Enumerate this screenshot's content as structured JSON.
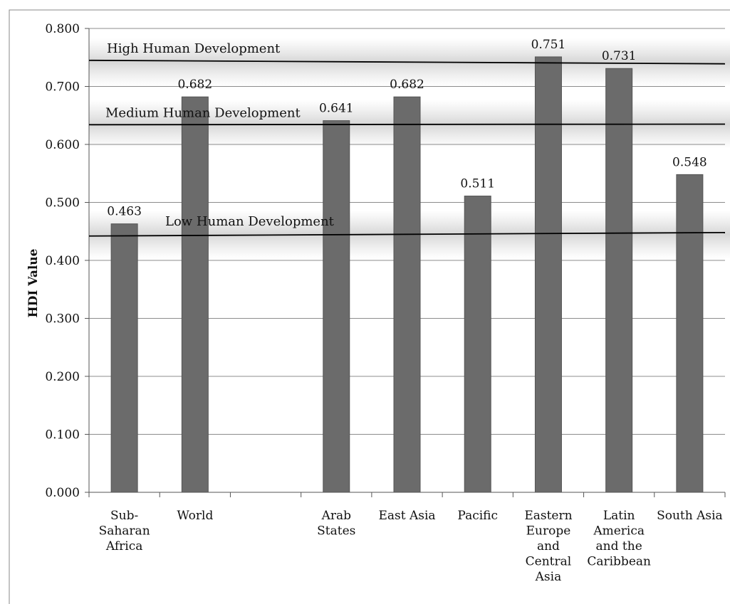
{
  "chart_data": {
    "type": "bar",
    "title": "",
    "xlabel": "",
    "ylabel": "HDI Value",
    "ylim": [
      0,
      0.8
    ],
    "yticks": [
      "0.000",
      "0.100",
      "0.200",
      "0.300",
      "0.400",
      "0.500",
      "0.600",
      "0.700",
      "0.800"
    ],
    "grid": true,
    "legend": "none",
    "bar_color": "#6b6b6b",
    "categories": [
      "Sub-\nSaharan\nAfrica",
      "World",
      "",
      "Arab\nStates",
      "East Asia",
      "Pacific",
      "Eastern\nEurope\nand\nCentral\nAsia",
      "Latin\nAmerica\nand the\nCaribbean",
      "South Asia"
    ],
    "values": [
      0.463,
      0.682,
      null,
      0.641,
      0.682,
      0.511,
      0.751,
      0.731,
      0.548
    ],
    "data_labels": [
      "0.463",
      "0.682",
      "",
      "0.641",
      "0.682",
      "0.511",
      "0.751",
      "0.731",
      "0.548"
    ],
    "annotations": [
      {
        "label": "High Human Development",
        "y_start": 0.745,
        "y_end": 0.739
      },
      {
        "label": "Medium Human Development",
        "y_start": 0.634,
        "y_end": 0.635
      },
      {
        "label": "Low Human Development",
        "y_start": 0.442,
        "y_end": 0.448
      }
    ]
  }
}
